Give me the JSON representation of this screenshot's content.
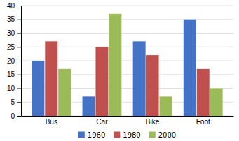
{
  "chart_data": {
    "type": "bar",
    "categories": [
      "Bus",
      "Car",
      "Bike",
      "Foot"
    ],
    "series": [
      {
        "name": "1960",
        "color": "#4472C4",
        "values": [
          20,
          7,
          27,
          35
        ]
      },
      {
        "name": "1980",
        "color": "#C0504D",
        "values": [
          27,
          25,
          22,
          17
        ]
      },
      {
        "name": "2000",
        "color": "#9BBB59",
        "values": [
          17,
          37,
          7,
          10
        ]
      }
    ],
    "ylim": [
      0,
      40
    ],
    "yticks": [
      0,
      5,
      10,
      15,
      20,
      25,
      30,
      35,
      40
    ],
    "grid": true,
    "legend": "bottom"
  }
}
